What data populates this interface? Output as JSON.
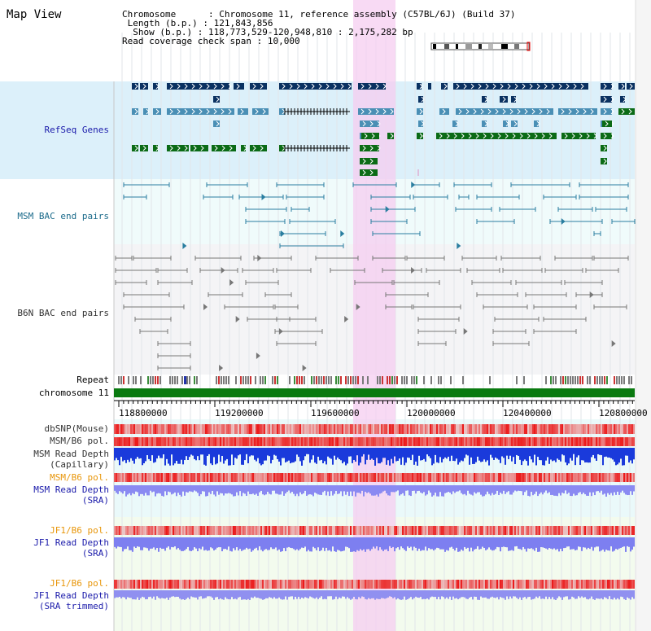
{
  "title": "Map View",
  "info": {
    "chromosome_key": "Chromosome",
    "chromosome_val": "Chromosome 11, reference assembly (C57BL/6J) (Build 37)",
    "length_key": "Length (b.p.)",
    "length_val": "121,843,856",
    "show_key": "Show (b.p.)",
    "show_val": "118,773,529-120,948,810 : 2,175,282 bp",
    "span_key": "Read coverage check span",
    "span_val": "10,000"
  },
  "tracks": {
    "refseq": "RefSeq Genes",
    "msm_bac": "MSM BAC end pairs",
    "b6n_bac": "B6N BAC end pairs",
    "repeat": "Repeat",
    "chromosome": "chromosome 11",
    "dbsnp": "dbSNP(Mouse)",
    "msm_b6_pol_1": "MSM/B6 pol.",
    "msm_depth_cap_1": "MSM Read Depth",
    "msm_depth_cap_2": "(Capillary)",
    "msm_b6_pol_2": "MSM/B6 pol.",
    "msm_depth_sra_1": "MSM Read Depth",
    "msm_depth_sra_2": "(SRA)",
    "jf1_b6_pol_1": "JF1/B6 pol.",
    "jf1_depth_sra_1": "JF1 Read Depth",
    "jf1_depth_sra_2": "(SRA)",
    "jf1_b6_pol_2": "JF1/B6 pol.",
    "jf1_depth_trim_1": "JF1 Read Depth",
    "jf1_depth_trim_2": "(SRA trimmed)"
  },
  "axis": {
    "ticks": [
      "118800000",
      "119200000",
      "119600000",
      "120000000",
      "120400000",
      "120800000"
    ]
  },
  "colors": {
    "gene_navy": "#0a3161",
    "gene_teal": "#4a8fb5",
    "gene_green": "#0b6b16",
    "bac_msm": "#2a7ea0",
    "bac_b6n": "#777777",
    "highlight": "#f6cdf0",
    "chrom_bar": "#0a7a10",
    "label_blue": "#1a1aaa",
    "label_orange": "#e8960a"
  }
}
